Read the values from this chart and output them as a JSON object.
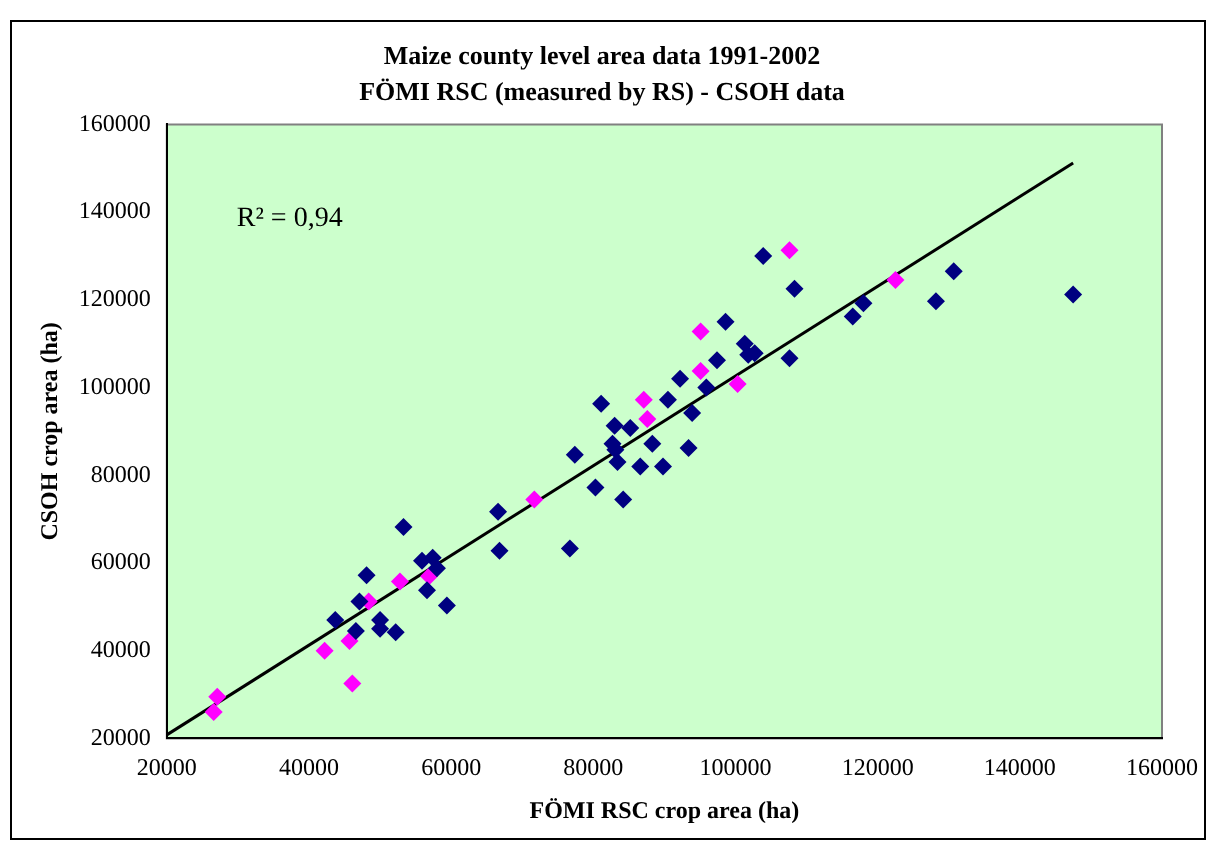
{
  "chart_data": {
    "type": "scatter",
    "title": "Maize county level area data 1991-2002",
    "subtitle": "FÖMI RSC (measured by RS) - CSOH data",
    "xlabel": "FÖMI RSC crop area (ha)",
    "ylabel": "CSOH crop area (ha)",
    "annotations": [
      "R² = 0,94"
    ],
    "xlim": [
      20000,
      160000
    ],
    "xticks": [
      20000,
      40000,
      60000,
      80000,
      100000,
      120000,
      140000,
      160000
    ],
    "ylim": [
      20000,
      160000
    ],
    "yticks": [
      20000,
      40000,
      60000,
      80000,
      100000,
      120000,
      140000,
      160000
    ],
    "grid": false,
    "legend": false,
    "marker": "diamond",
    "series": [
      {
        "color": "#000080",
        "x": [
          43700,
          46600,
          48100,
          47100,
          50000,
          50000,
          52200,
          53300,
          55900,
          57400,
          58000,
          56600,
          59400,
          66600,
          66800,
          76700,
          77400,
          80300,
          81100,
          83000,
          82700,
          83400,
          84200,
          85200,
          86600,
          88300,
          83100,
          89800,
          90500,
          92200,
          93400,
          93900,
          95900,
          97400,
          98600,
          101300,
          101800,
          102700,
          103900,
          107600,
          108300,
          116500,
          118000,
          128200,
          130700,
          147500
        ],
        "values": [
          47000,
          44500,
          57200,
          51200,
          47000,
          45000,
          44200,
          68200,
          60500,
          61200,
          58800,
          53800,
          50300,
          71700,
          62800,
          63300,
          84700,
          77200,
          96300,
          91300,
          87200,
          83000,
          74500,
          90800,
          82000,
          87200,
          85800,
          82000,
          97200,
          102000,
          86200,
          94200,
          100000,
          106200,
          115000,
          110000,
          107500,
          107800,
          130000,
          106700,
          122500,
          116200,
          119200,
          119700,
          126500,
          121200
        ]
      },
      {
        "color": "#ff00ff",
        "x": [
          26600,
          27100,
          42200,
          45700,
          46100,
          48400,
          52800,
          56900,
          71700,
          87100,
          87600,
          95100,
          95100,
          100300,
          107600,
          122500
        ],
        "values": [
          26000,
          29500,
          40000,
          42200,
          32500,
          51200,
          55800,
          57000,
          74500,
          97200,
          92800,
          112800,
          103800,
          100800,
          131300,
          124500
        ]
      },
      {
        "type": "line",
        "color": "#000000",
        "marker": "none",
        "line_style": "solid",
        "x": [
          20000,
          147500
        ],
        "values": [
          20800,
          151200
        ]
      }
    ]
  }
}
